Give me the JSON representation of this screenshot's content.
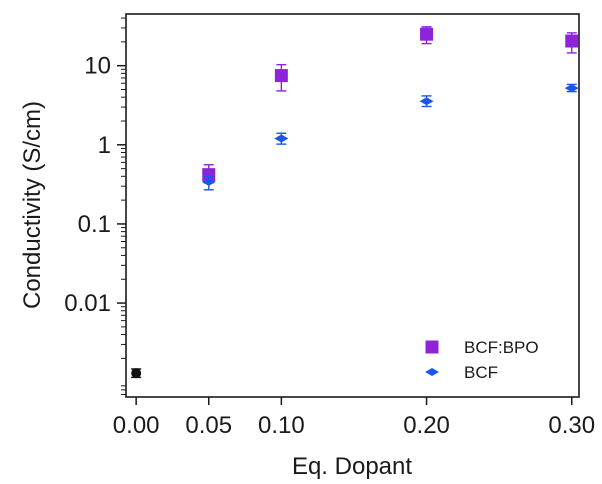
{
  "chart_data": {
    "type": "scatter",
    "title": "",
    "xlabel": "Eq. Dopant",
    "ylabel": "Conductivity (S/cm)",
    "xscale": "linear",
    "yscale": "log",
    "xlim": [
      -0.007,
      0.305
    ],
    "ylim": [
      0.00065,
      45
    ],
    "grid": false,
    "legend_position": "bottom-right",
    "x_tick_labels": [
      {
        "value": 0.0,
        "label": "0.00"
      },
      {
        "value": 0.05,
        "label": "0.05"
      },
      {
        "value": 0.1,
        "label": "0.10"
      },
      {
        "value": 0.2,
        "label": "0.20"
      },
      {
        "value": 0.3,
        "label": "0.30"
      }
    ],
    "y_tick_labels": [
      {
        "value": 0.01,
        "label": "0.01"
      },
      {
        "value": 0.1,
        "label": "0.1"
      },
      {
        "value": 1,
        "label": "1"
      },
      {
        "value": 10,
        "label": "10"
      }
    ],
    "series": [
      {
        "name": "BCF:BPO",
        "marker": "square",
        "color": "#8e24d9",
        "points": [
          {
            "x": 0.05,
            "y": 0.42,
            "err_low": 0.33,
            "err_high": 0.56
          },
          {
            "x": 0.1,
            "y": 7.5,
            "err_low": 4.8,
            "err_high": 10.3
          },
          {
            "x": 0.2,
            "y": 25,
            "err_low": 19,
            "err_high": 31
          },
          {
            "x": 0.3,
            "y": 20.5,
            "err_low": 14.5,
            "err_high": 26
          }
        ]
      },
      {
        "name": "BCF",
        "marker": "diamond",
        "color": "#1a56e8",
        "points": [
          {
            "x": 0.05,
            "y": 0.34,
            "err_low": 0.27,
            "err_high": 0.4
          },
          {
            "x": 0.1,
            "y": 1.2,
            "err_low": 1.02,
            "err_high": 1.4
          },
          {
            "x": 0.2,
            "y": 3.55,
            "err_low": 3.05,
            "err_high": 4.15
          },
          {
            "x": 0.3,
            "y": 5.2,
            "err_low": 4.7,
            "err_high": 5.8
          }
        ]
      },
      {
        "marker": "circle",
        "color": "#111111",
        "points": [
          {
            "x": 0.0,
            "y": 0.0013,
            "err_low": 0.00115,
            "err_high": 0.00147
          }
        ]
      }
    ]
  }
}
